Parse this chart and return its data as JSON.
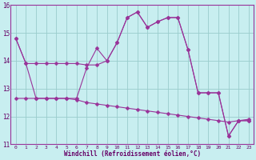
{
  "xlabel": "Windchill (Refroidissement éolien,°C)",
  "x": [
    0,
    1,
    2,
    3,
    4,
    5,
    6,
    7,
    8,
    9,
    10,
    11,
    12,
    13,
    14,
    15,
    16,
    17,
    18,
    19,
    20,
    21,
    22,
    23
  ],
  "line1": [
    14.8,
    13.9,
    13.9,
    13.9,
    13.9,
    13.9,
    13.9,
    13.85,
    13.85,
    14.0,
    14.65,
    15.55,
    15.75,
    15.2,
    15.4,
    15.55,
    15.55,
    14.4,
    12.85,
    12.85,
    12.85,
    11.3,
    11.85,
    11.85
  ],
  "line2": [
    14.8,
    13.9,
    12.65,
    12.65,
    12.65,
    12.65,
    12.65,
    13.75,
    14.45,
    14.0,
    14.65,
    15.55,
    15.75,
    15.2,
    15.4,
    15.55,
    15.55,
    14.4,
    12.85,
    12.85,
    12.85,
    11.3,
    11.85,
    11.85
  ],
  "line3": [
    12.65,
    12.65,
    12.65,
    12.65,
    12.65,
    12.65,
    12.6,
    12.5,
    12.45,
    12.4,
    12.35,
    12.3,
    12.25,
    12.2,
    12.15,
    12.1,
    12.05,
    12.0,
    11.95,
    11.9,
    11.85,
    11.8,
    11.85,
    11.9
  ],
  "ylim": [
    11,
    16
  ],
  "yticks": [
    11,
    12,
    13,
    14,
    15,
    16
  ],
  "bg_color": "#c8eef0",
  "grid_color": "#99cccc",
  "line_color": "#993399",
  "marker": "D",
  "marker_size": 2.5
}
